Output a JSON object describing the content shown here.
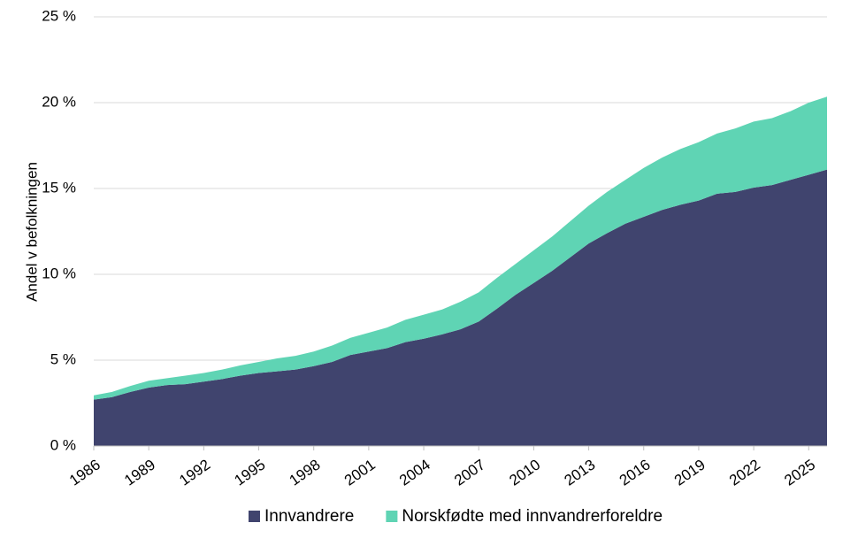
{
  "chart_data": {
    "type": "stacked_area",
    "y_label": "Andel v befolkningen",
    "x": [
      1986,
      1987,
      1988,
      1989,
      1990,
      1991,
      1992,
      1993,
      1994,
      1995,
      1996,
      1997,
      1998,
      1999,
      2000,
      2001,
      2002,
      2003,
      2004,
      2005,
      2006,
      2007,
      2008,
      2009,
      2010,
      2011,
      2012,
      2013,
      2014,
      2015,
      2016,
      2017,
      2018,
      2019,
      2020,
      2021,
      2022,
      2023,
      2024,
      2025,
      2026
    ],
    "series": [
      {
        "name": "Innvandrere",
        "color": "#40446e",
        "values": [
          2.7,
          2.85,
          3.15,
          3.4,
          3.55,
          3.6,
          3.75,
          3.9,
          4.1,
          4.25,
          4.35,
          4.45,
          4.65,
          4.9,
          5.3,
          5.5,
          5.7,
          6.05,
          6.25,
          6.5,
          6.8,
          7.25,
          8.0,
          8.8,
          9.5,
          10.2,
          11.0,
          11.8,
          12.4,
          12.95,
          13.35,
          13.75,
          14.05,
          14.3,
          14.7,
          14.8,
          15.05,
          15.2,
          15.5,
          15.8,
          16.1
        ]
      },
      {
        "name": "Norskfødte med innvandrerforeldre",
        "color": "#5fd4b4",
        "values": [
          0.25,
          0.3,
          0.35,
          0.4,
          0.4,
          0.5,
          0.5,
          0.55,
          0.6,
          0.65,
          0.75,
          0.8,
          0.85,
          0.95,
          1.0,
          1.1,
          1.2,
          1.3,
          1.4,
          1.45,
          1.6,
          1.7,
          1.8,
          1.8,
          1.9,
          2.0,
          2.1,
          2.2,
          2.4,
          2.55,
          2.85,
          3.05,
          3.25,
          3.4,
          3.5,
          3.7,
          3.85,
          3.9,
          4.0,
          4.2,
          4.25
        ]
      }
    ],
    "xlim": [
      1986,
      2026
    ],
    "xticks": [
      1986,
      1989,
      1992,
      1995,
      1998,
      2001,
      2004,
      2007,
      2010,
      2013,
      2016,
      2019,
      2022,
      2025
    ],
    "ylim": [
      0,
      25
    ],
    "yticks": [
      {
        "value": 0,
        "label": "0 %"
      },
      {
        "value": 5,
        "label": "5 %"
      },
      {
        "value": 10,
        "label": "10 %"
      },
      {
        "value": 15,
        "label": "15 %"
      },
      {
        "value": 20,
        "label": "20 %"
      },
      {
        "value": 25,
        "label": "25 %"
      }
    ],
    "grid": true,
    "legend": "bottom"
  }
}
